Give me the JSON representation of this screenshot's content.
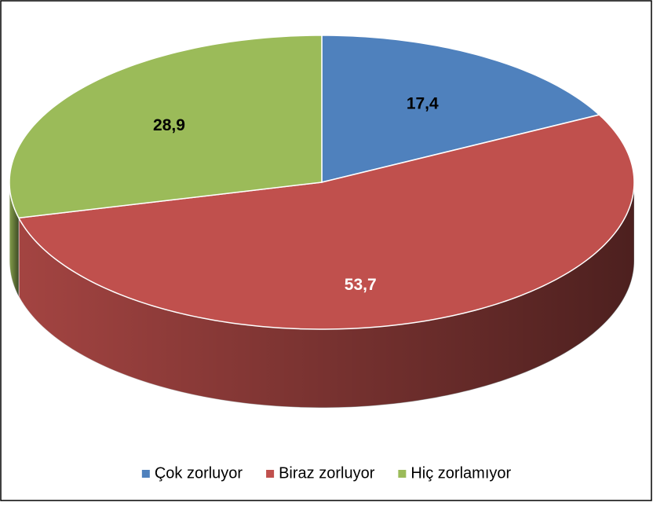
{
  "chart_data": {
    "type": "pie3d",
    "categories": [
      "Çok zorluyor",
      "Biraz zorluyor",
      "Hiç zorlamıyor"
    ],
    "values": [
      17.4,
      53.7,
      28.9
    ],
    "value_labels": [
      "17,4",
      "53,7",
      "28,9"
    ],
    "colors": [
      "#4f81bd",
      "#c0504d",
      "#9bbb59"
    ],
    "label_colors": [
      "#000000",
      "#ffffff",
      "#000000"
    ],
    "legend": "bottom"
  }
}
